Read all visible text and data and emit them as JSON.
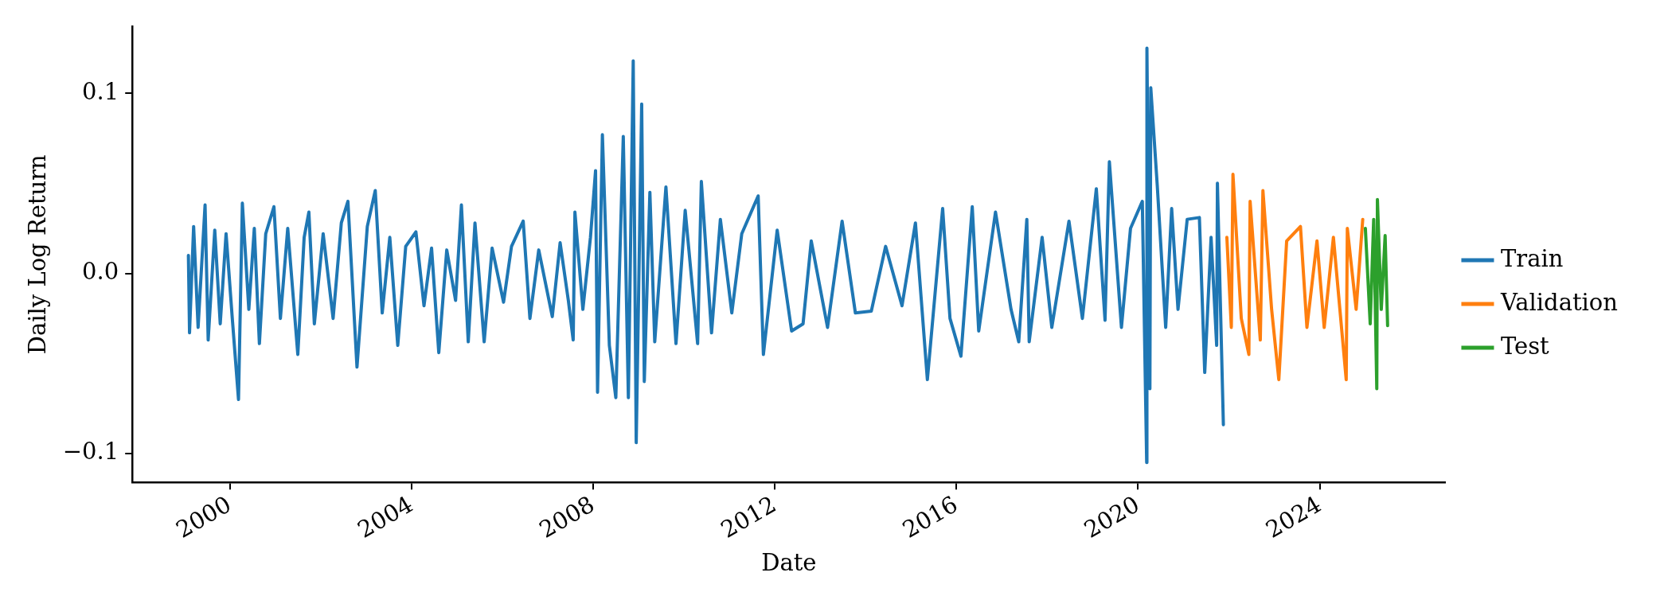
{
  "chart_data": {
    "type": "line",
    "xlabel": "Date",
    "ylabel": "Daily Log Return",
    "xlim": [
      "1997-11-07",
      "2026-10-08"
    ],
    "xticks": [
      "2000",
      "2004",
      "2008",
      "2012",
      "2016",
      "2020",
      "2024"
    ],
    "ylim": [
      -0.116,
      0.137
    ],
    "yticks": [
      {
        "value": -0.1,
        "label": "−0.1"
      },
      {
        "value": 0,
        "label": "0.0"
      },
      {
        "value": 0.1,
        "label": "0.1"
      }
    ],
    "legend": "right",
    "series": [
      {
        "name": "Train",
        "color": "#1f77b4",
        "x": [
          "1999-02-01",
          "1999-02-10",
          "1999-03-15",
          "1999-04-20",
          "1999-06-15",
          "1999-07-10",
          "1999-09-01",
          "1999-10-15",
          "1999-12-01",
          "2000-01-20",
          "2000-03-10",
          "2000-04-10",
          "2000-06-01",
          "2000-07-15",
          "2000-08-25",
          "2000-10-15",
          "2000-12-20",
          "2001-02-10",
          "2001-04-10",
          "2001-06-30",
          "2001-08-20",
          "2001-09-27",
          "2001-11-10",
          "2002-01-20",
          "2002-04-10",
          "2002-06-15",
          "2002-08-07",
          "2002-10-19",
          "2003-01-10",
          "2003-03-15",
          "2003-05-10",
          "2003-07-10",
          "2003-09-12",
          "2003-11-15",
          "2004-02-05",
          "2004-04-10",
          "2004-06-10",
          "2004-08-07",
          "2004-10-10",
          "2004-12-20",
          "2005-02-05",
          "2005-04-01",
          "2005-05-25",
          "2005-08-07",
          "2005-10-10",
          "2006-01-10",
          "2006-03-15",
          "2006-06-17",
          "2006-08-10",
          "2006-10-20",
          "2007-02-06",
          "2007-04-10",
          "2007-06-15",
          "2007-07-24",
          "2007-08-07",
          "2007-10-10",
          "2007-12-10",
          "2008-01-20",
          "2008-02-05",
          "2008-03-15",
          "2008-05-10",
          "2008-07-01",
          "2008-08-30",
          "2008-10-10",
          "2008-11-18",
          "2008-12-12",
          "2009-01-25",
          "2009-02-15",
          "2009-04-01",
          "2009-05-10",
          "2009-08-08",
          "2009-10-28",
          "2010-01-10",
          "2010-04-20",
          "2010-05-20",
          "2010-08-10",
          "2010-10-20",
          "2011-01-20",
          "2011-04-10",
          "2011-08-20",
          "2011-10-01",
          "2012-01-20",
          "2012-05-15",
          "2012-08-15",
          "2012-10-20",
          "2013-02-28",
          "2013-06-25",
          "2013-10-10",
          "2014-02-15",
          "2014-06-10",
          "2014-10-20",
          "2015-02-05",
          "2015-05-12",
          "2015-09-12",
          "2015-11-10",
          "2016-02-06",
          "2016-05-07",
          "2016-06-28",
          "2016-11-10",
          "2017-03-15",
          "2017-05-16",
          "2017-07-20",
          "2017-08-08",
          "2017-11-20",
          "2018-02-06",
          "2018-06-24",
          "2018-10-10",
          "2019-01-30",
          "2019-04-10",
          "2019-05-15",
          "2019-08-20",
          "2019-11-01",
          "2020-02-04",
          "2020-03-10",
          "2020-03-12",
          "2020-04-05",
          "2020-04-12",
          "2020-06-03",
          "2020-08-10",
          "2020-09-27",
          "2020-11-17",
          "2021-01-30",
          "2021-05-08",
          "2021-06-20",
          "2021-08-10",
          "2021-09-24",
          "2021-09-30",
          "2021-11-17"
        ],
        "values": [
          0.01,
          -0.033,
          0.026,
          -0.03,
          0.038,
          -0.037,
          0.024,
          -0.028,
          0.022,
          -0.025,
          -0.07,
          0.039,
          -0.02,
          0.025,
          -0.039,
          0.022,
          0.037,
          -0.025,
          0.025,
          -0.045,
          0.02,
          0.034,
          -0.028,
          0.022,
          -0.025,
          0.028,
          0.04,
          -0.052,
          0.026,
          0.046,
          -0.022,
          0.02,
          -0.04,
          0.015,
          0.023,
          -0.018,
          0.014,
          -0.044,
          0.013,
          -0.015,
          0.038,
          -0.038,
          0.028,
          -0.038,
          0.014,
          -0.016,
          0.015,
          0.029,
          -0.025,
          0.013,
          -0.024,
          0.017,
          -0.015,
          -0.037,
          0.034,
          -0.02,
          0.02,
          0.057,
          -0.066,
          0.077,
          -0.04,
          -0.069,
          0.076,
          -0.069,
          0.118,
          -0.094,
          0.094,
          -0.06,
          0.045,
          -0.038,
          0.048,
          -0.039,
          0.035,
          -0.039,
          0.051,
          -0.033,
          0.03,
          -0.022,
          0.022,
          0.043,
          -0.045,
          0.024,
          -0.032,
          -0.028,
          0.018,
          -0.03,
          0.029,
          -0.022,
          -0.021,
          0.015,
          -0.018,
          0.028,
          -0.059,
          0.036,
          -0.025,
          -0.046,
          0.037,
          -0.032,
          0.034,
          -0.02,
          -0.038,
          0.03,
          -0.038,
          0.02,
          -0.03,
          0.029,
          -0.025,
          0.047,
          -0.026,
          0.062,
          -0.03,
          0.025,
          0.04,
          -0.105,
          0.125,
          -0.064,
          0.103,
          0.049,
          -0.03,
          0.036,
          -0.02,
          0.03,
          0.031,
          -0.055,
          0.02,
          -0.04,
          0.05,
          -0.084
        ]
      },
      {
        "name": "Validation",
        "color": "#ff7f0e",
        "x": [
          "2021-12-15",
          "2022-01-20",
          "2022-02-02",
          "2022-04-10",
          "2022-06-10",
          "2022-06-20",
          "2022-09-10",
          "2022-10-01",
          "2022-12-10",
          "2023-02-06",
          "2023-04-10",
          "2023-07-30",
          "2023-09-20",
          "2023-12-10",
          "2024-02-06",
          "2024-04-20",
          "2024-08-01",
          "2024-08-10",
          "2024-10-20",
          "2024-12-12"
        ],
        "values": [
          0.02,
          -0.03,
          0.055,
          -0.025,
          -0.045,
          0.04,
          -0.037,
          0.046,
          -0.02,
          -0.059,
          0.018,
          0.026,
          -0.03,
          0.018,
          -0.03,
          0.02,
          -0.059,
          0.025,
          -0.02,
          0.03
        ]
      },
      {
        "name": "Test",
        "color": "#2ca02c",
        "x": [
          "2025-01-02",
          "2025-02-10",
          "2025-03-10",
          "2025-04-04",
          "2025-04-09",
          "2025-05-10",
          "2025-06-10",
          "2025-06-30"
        ],
        "values": [
          0.025,
          -0.028,
          0.03,
          -0.064,
          0.041,
          -0.02,
          0.021,
          -0.029
        ]
      }
    ]
  }
}
